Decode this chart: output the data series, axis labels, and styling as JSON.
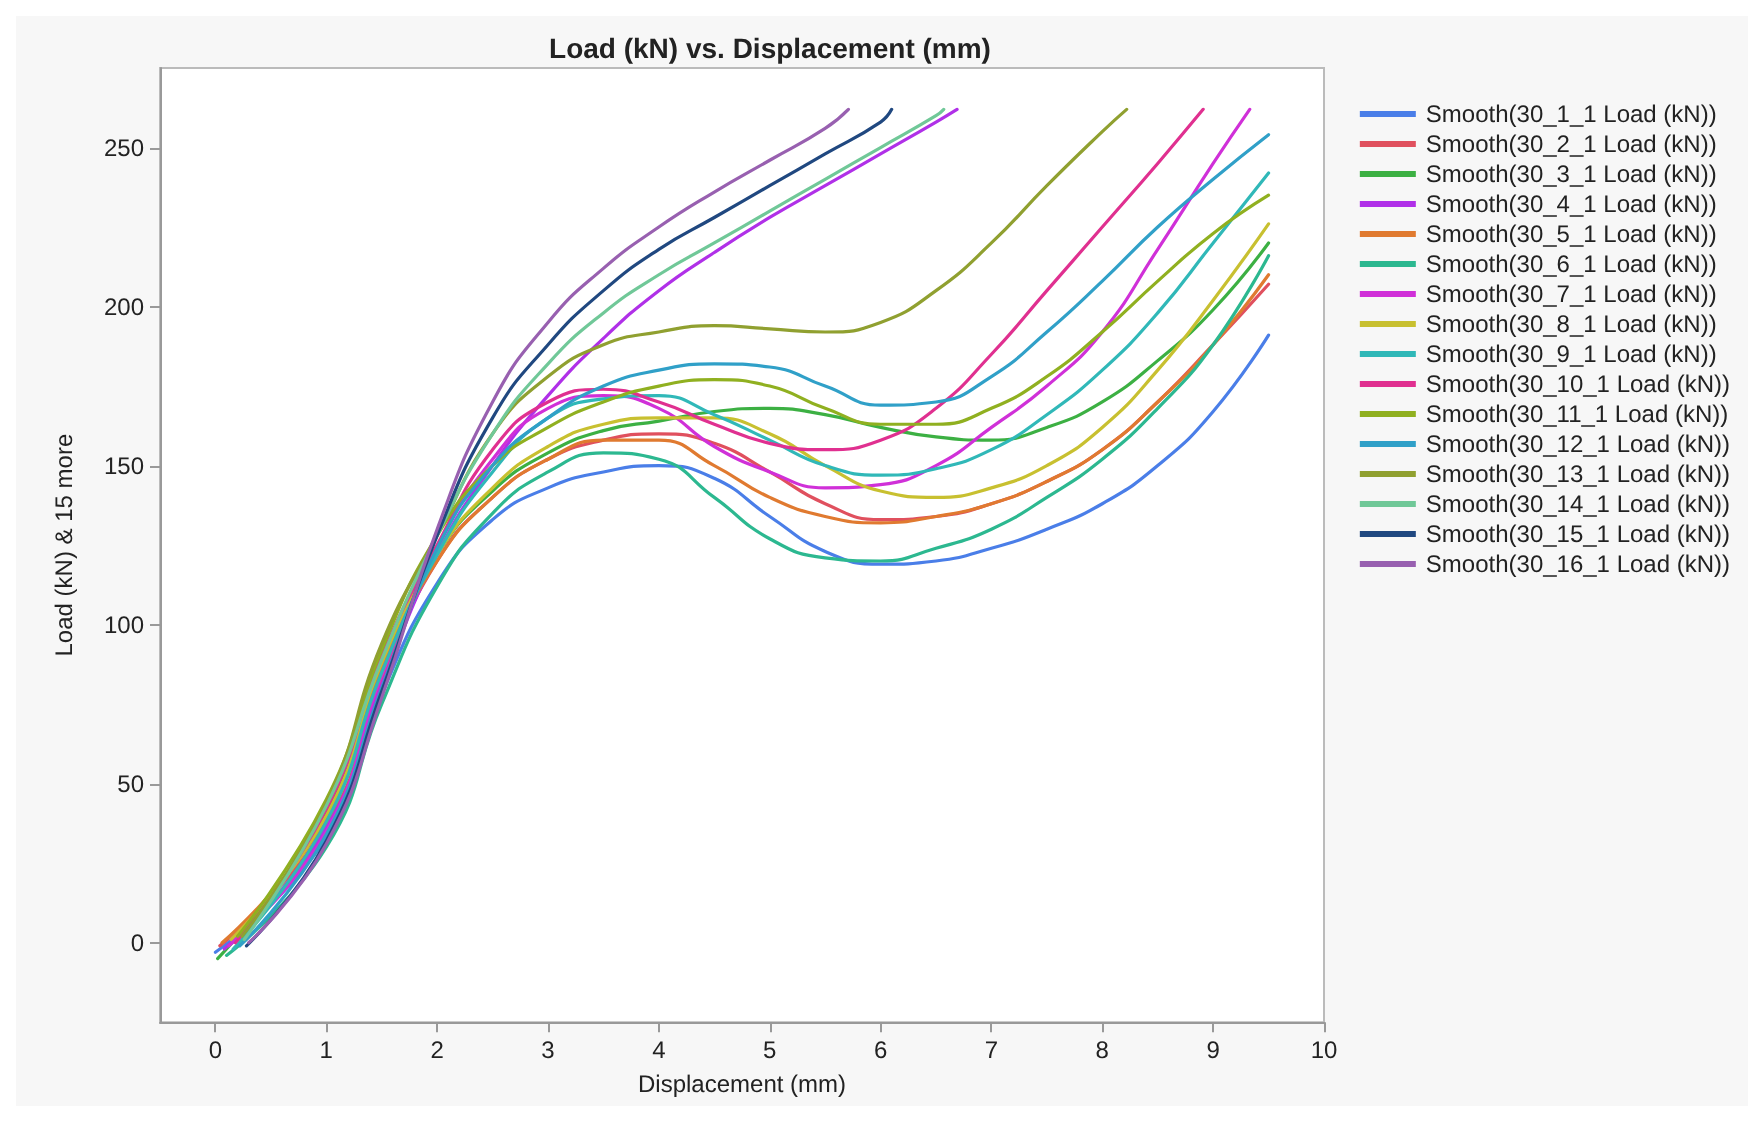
{
  "chart_data": {
    "type": "line",
    "title": "Load (kN) vs. Displacement (mm)",
    "xlabel": "Displacement (mm)",
    "ylabel": "Load (kN) & 15 more",
    "xlim": [
      -0.5,
      10
    ],
    "ylim": [
      -25,
      275
    ],
    "xticks": [
      0,
      1,
      2,
      3,
      4,
      5,
      6,
      7,
      8,
      9,
      10
    ],
    "yticks": [
      0,
      50,
      100,
      150,
      200,
      250
    ],
    "grid": false,
    "legend": "right",
    "series": [
      {
        "name": "Smooth(30_1_1 Load (kN))",
        "color": "#4a7ee8",
        "x": [
          0,
          1,
          1.5,
          2,
          2.5,
          3,
          3.5,
          4,
          4.5,
          5,
          5.5,
          6,
          6.5,
          7,
          7.5,
          8,
          8.5,
          9,
          9.5
        ],
        "values": [
          -3,
          33,
          78,
          113,
          133,
          143,
          148,
          150,
          146,
          134,
          123,
          119,
          120,
          124,
          130,
          138,
          150,
          167,
          191
        ]
      },
      {
        "name": "Smooth(30_2_1 Load (kN))",
        "color": "#e0505e",
        "x": [
          0.04,
          1,
          1.5,
          2,
          2.5,
          3,
          3.5,
          4,
          4.5,
          5,
          5.5,
          6,
          6.5,
          7,
          7.5,
          8,
          8.5,
          9,
          9.5
        ],
        "values": [
          -1,
          37,
          83,
          120,
          140,
          152,
          158,
          160,
          157,
          148,
          138,
          133,
          134,
          138,
          145,
          155,
          170,
          188,
          207
        ]
      },
      {
        "name": "Smooth(30_3_1 Load (kN))",
        "color": "#3cb043",
        "x": [
          0.02,
          1,
          1.5,
          2,
          2.5,
          3,
          3.5,
          4,
          4.5,
          5,
          5.5,
          6,
          6.5,
          7,
          7.5,
          8,
          8.5,
          9,
          9.5
        ],
        "values": [
          -5,
          41,
          87,
          122,
          142,
          154,
          161,
          164,
          167,
          168,
          166,
          162,
          159,
          158,
          162,
          170,
          183,
          199,
          220
        ]
      },
      {
        "name": "Smooth(30_4_1 Load (kN))",
        "color": "#b030e8",
        "x": [
          0.08,
          1,
          1.5,
          2,
          2.5,
          3,
          3.5,
          4,
          4.5,
          5,
          5.5,
          6,
          6.5,
          6.69
        ],
        "values": [
          -2,
          36,
          81,
          122,
          150,
          172,
          190,
          205,
          217,
          228,
          238,
          248,
          258,
          262
        ]
      },
      {
        "name": "Smooth(30_5_1 Load (kN))",
        "color": "#e07a30",
        "x": [
          0.06,
          1,
          1.5,
          2,
          2.5,
          3,
          3.5,
          4,
          4.5,
          5,
          5.5,
          6,
          6.5,
          7,
          7.5,
          8,
          8.5,
          9,
          9.5
        ],
        "values": [
          0,
          39,
          86,
          120,
          140,
          152,
          158,
          158,
          150,
          140,
          134,
          132,
          134,
          138,
          145,
          155,
          170,
          188,
          210
        ]
      },
      {
        "name": "Smooth(30_6_1 Load (kN))",
        "color": "#2cb890",
        "x": [
          0.1,
          1,
          1.5,
          2,
          2.5,
          3,
          3.5,
          4,
          4.5,
          5,
          5.5,
          6,
          6.5,
          7,
          7.5,
          8,
          8.5,
          9,
          9.5
        ],
        "values": [
          -4,
          30,
          75,
          112,
          135,
          148,
          154,
          152,
          140,
          127,
          121,
          120,
          124,
          130,
          140,
          152,
          168,
          188,
          216
        ]
      },
      {
        "name": "Smooth(30_7_1 Load (kN))",
        "color": "#d030d8",
        "x": [
          0.12,
          1,
          1.5,
          2,
          2.5,
          3,
          3.5,
          4,
          4.5,
          5,
          5.5,
          6,
          6.5,
          7,
          7.5,
          8,
          8.5,
          9,
          9.33
        ],
        "values": [
          -1,
          35,
          84,
          124,
          152,
          168,
          172,
          168,
          156,
          148,
          143,
          144,
          150,
          162,
          175,
          192,
          218,
          245,
          262
        ]
      },
      {
        "name": "Smooth(30_8_1 Load (kN))",
        "color": "#c8c030",
        "x": [
          0.14,
          1,
          1.5,
          2,
          2.5,
          3,
          3.5,
          4,
          4.5,
          5,
          5.5,
          6,
          6.5,
          7,
          7.5,
          8,
          8.5,
          9,
          9.5
        ],
        "values": [
          1,
          40,
          88,
          122,
          143,
          156,
          163,
          165,
          165,
          160,
          150,
          142,
          140,
          143,
          150,
          162,
          180,
          202,
          226
        ]
      },
      {
        "name": "Smooth(30_9_1 Load (kN))",
        "color": "#30b8b8",
        "x": [
          0.16,
          1,
          1.5,
          2,
          2.5,
          3,
          3.5,
          4,
          4.5,
          5,
          5.5,
          6,
          6.5,
          7,
          7.5,
          8,
          8.5,
          9,
          9.5
        ],
        "values": [
          -2,
          38,
          85,
          122,
          148,
          165,
          171,
          172,
          166,
          158,
          150,
          147,
          149,
          155,
          166,
          180,
          198,
          220,
          242
        ]
      },
      {
        "name": "Smooth(30_10_1 Load (kN))",
        "color": "#e03090",
        "x": [
          0.18,
          1,
          1.5,
          2,
          2.5,
          3,
          3.5,
          4,
          4.5,
          5,
          5.5,
          6,
          6.5,
          7,
          7.5,
          8,
          8.5,
          8.91
        ],
        "values": [
          0,
          42,
          90,
          125,
          155,
          170,
          174,
          170,
          163,
          157,
          155,
          158,
          168,
          185,
          205,
          225,
          245,
          262
        ]
      },
      {
        "name": "Smooth(30_11_1 Load (kN))",
        "color": "#90b020",
        "x": [
          0.2,
          1,
          1.5,
          2,
          2.5,
          3,
          3.5,
          4,
          4.5,
          5,
          5.5,
          6,
          6.5,
          7,
          7.5,
          8,
          8.5,
          9,
          9.5
        ],
        "values": [
          2,
          45,
          92,
          128,
          150,
          162,
          170,
          175,
          177,
          175,
          168,
          163,
          163,
          168,
          178,
          192,
          208,
          223,
          235
        ]
      },
      {
        "name": "Smooth(30_12_1 Load (kN))",
        "color": "#30a0c8",
        "x": [
          0.22,
          1,
          1.5,
          2,
          2.5,
          3,
          3.5,
          4,
          4.5,
          5,
          5.5,
          6,
          6.5,
          7,
          7.5,
          8,
          8.5,
          9,
          9.5
        ],
        "values": [
          -1,
          34,
          80,
          124,
          150,
          165,
          175,
          180,
          182,
          181,
          175,
          169,
          170,
          178,
          192,
          208,
          225,
          240,
          254
        ]
      },
      {
        "name": "Smooth(30_13_1 Load (kN))",
        "color": "#90a030",
        "x": [
          0.24,
          1,
          1.5,
          2,
          2.5,
          3,
          3.5,
          4,
          4.5,
          5,
          5.5,
          6,
          6.5,
          7,
          7.5,
          8,
          8.22
        ],
        "values": [
          2,
          44,
          94,
          128,
          160,
          178,
          188,
          192,
          194,
          193,
          192,
          195,
          205,
          220,
          238,
          255,
          262
        ]
      },
      {
        "name": "Smooth(30_14_1 Load (kN))",
        "color": "#70c898",
        "x": [
          0.26,
          1,
          1.5,
          2,
          2.5,
          3,
          3.5,
          4,
          4.5,
          5,
          5.5,
          6,
          6.5,
          6.57
        ],
        "values": [
          1,
          43,
          89,
          128,
          160,
          182,
          198,
          210,
          220,
          230,
          240,
          250,
          260,
          262
        ]
      },
      {
        "name": "Smooth(30_15_1 Load (kN))",
        "color": "#204880",
        "x": [
          0.28,
          1,
          1.5,
          2,
          2.5,
          3,
          3.5,
          4,
          4.5,
          5,
          5.5,
          6,
          6.1
        ],
        "values": [
          -1,
          32,
          79,
          128,
          165,
          188,
          205,
          218,
          228,
          238,
          248,
          258,
          262
        ]
      },
      {
        "name": "Smooth(30_16_1 Load (kN))",
        "color": "#9860b0",
        "x": [
          0.3,
          1,
          1.5,
          2,
          2.5,
          3,
          3.5,
          4,
          4.5,
          5,
          5.5,
          5.71
        ],
        "values": [
          0,
          31,
          77,
          130,
          170,
          195,
          212,
          225,
          236,
          246,
          256,
          262
        ]
      }
    ]
  }
}
